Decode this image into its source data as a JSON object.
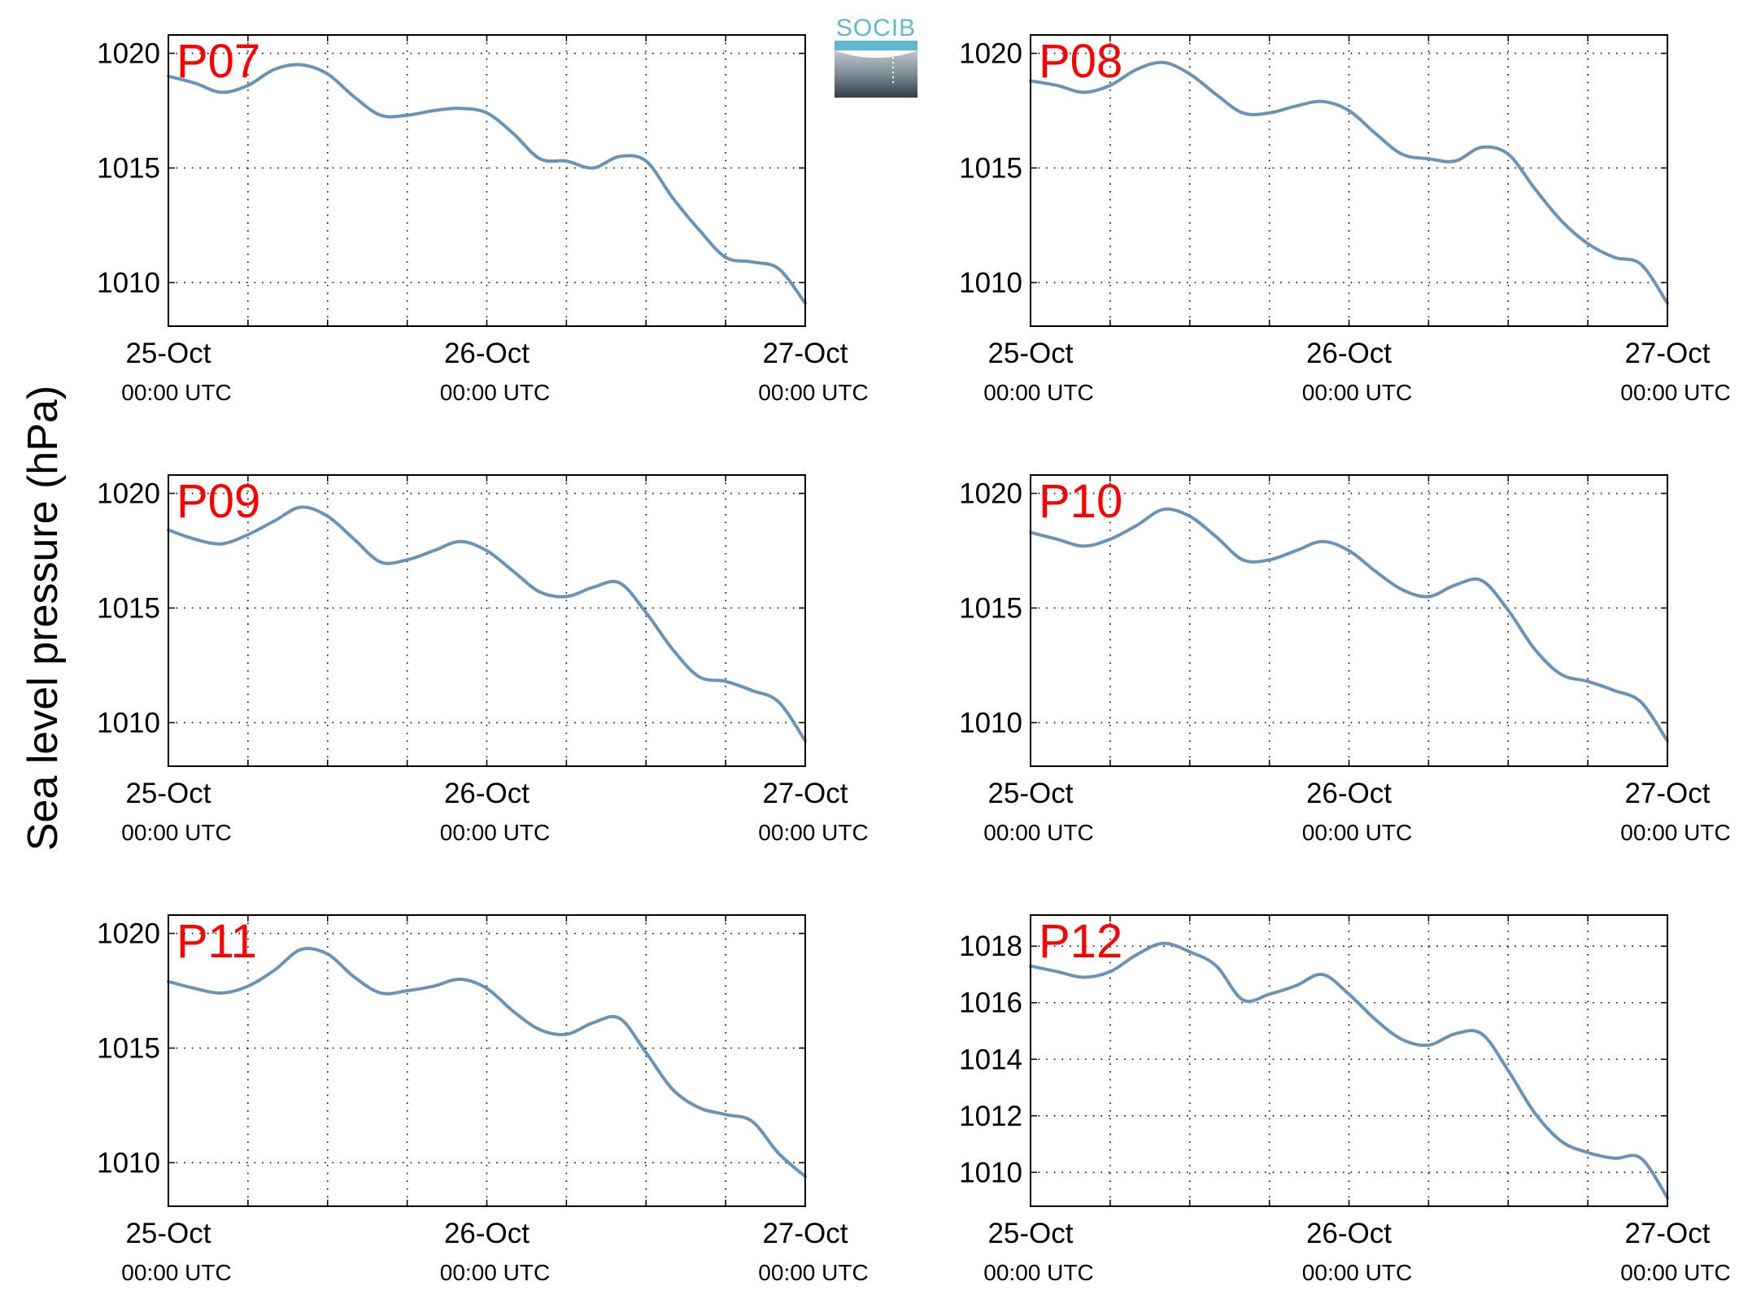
{
  "figure": {
    "ylabel": "Sea level pressure (hPa)",
    "logo_text": "SOCIB",
    "colors": {
      "line": "#6b93b5",
      "panel_label": "#ff0000",
      "grid": "#000000",
      "logo_text": "#5fb8cf"
    },
    "x_tick_labels": [
      {
        "date": "25-Oct",
        "time": "00:00 UTC"
      },
      {
        "date": "26-Oct",
        "time": "00:00 UTC"
      },
      {
        "date": "27-Oct",
        "time": "00:00 UTC"
      }
    ]
  },
  "chart_data": [
    {
      "type": "line",
      "title": "P07",
      "xlabel": "",
      "ylabel": "Sea level pressure (hPa)",
      "x": [
        "2023-10-25 00:00",
        "2023-10-25 02:00",
        "2023-10-25 04:00",
        "2023-10-25 06:00",
        "2023-10-25 08:00",
        "2023-10-25 10:00",
        "2023-10-25 12:00",
        "2023-10-25 14:00",
        "2023-10-25 16:00",
        "2023-10-25 18:00",
        "2023-10-25 20:00",
        "2023-10-25 22:00",
        "2023-10-26 00:00",
        "2023-10-26 02:00",
        "2023-10-26 04:00",
        "2023-10-26 06:00",
        "2023-10-26 08:00",
        "2023-10-26 10:00",
        "2023-10-26 12:00",
        "2023-10-26 14:00",
        "2023-10-26 16:00",
        "2023-10-26 18:00",
        "2023-10-26 20:00",
        "2023-10-26 22:00",
        "2023-10-27 00:00"
      ],
      "x_ticks": [
        "25-Oct",
        "26-Oct",
        "27-Oct"
      ],
      "y_ticks": [
        1010,
        1015,
        1020
      ],
      "ylim": [
        1008.1,
        1020.8
      ],
      "grid": true,
      "series": [
        {
          "values": [
            1019.0,
            1018.7,
            1018.3,
            1018.6,
            1019.3,
            1019.5,
            1019.1,
            1018.1,
            1017.3,
            1017.3,
            1017.5,
            1017.6,
            1017.4,
            1016.5,
            1015.4,
            1015.3,
            1015.0,
            1015.5,
            1015.3,
            1013.7,
            1012.3,
            1011.1,
            1010.9,
            1010.6,
            1009.1
          ]
        }
      ]
    },
    {
      "type": "line",
      "title": "P08",
      "xlabel": "",
      "ylabel": "Sea level pressure (hPa)",
      "x": [
        "2023-10-25 00:00",
        "2023-10-25 02:00",
        "2023-10-25 04:00",
        "2023-10-25 06:00",
        "2023-10-25 08:00",
        "2023-10-25 10:00",
        "2023-10-25 12:00",
        "2023-10-25 14:00",
        "2023-10-25 16:00",
        "2023-10-25 18:00",
        "2023-10-25 20:00",
        "2023-10-25 22:00",
        "2023-10-26 00:00",
        "2023-10-26 02:00",
        "2023-10-26 04:00",
        "2023-10-26 06:00",
        "2023-10-26 08:00",
        "2023-10-26 10:00",
        "2023-10-26 12:00",
        "2023-10-26 14:00",
        "2023-10-26 16:00",
        "2023-10-26 18:00",
        "2023-10-26 20:00",
        "2023-10-26 22:00",
        "2023-10-27 00:00"
      ],
      "x_ticks": [
        "25-Oct",
        "26-Oct",
        "27-Oct"
      ],
      "y_ticks": [
        1010,
        1015,
        1020
      ],
      "ylim": [
        1008.1,
        1020.8
      ],
      "grid": true,
      "series": [
        {
          "values": [
            1018.8,
            1018.6,
            1018.3,
            1018.6,
            1019.3,
            1019.6,
            1019.1,
            1018.2,
            1017.4,
            1017.4,
            1017.7,
            1017.9,
            1017.5,
            1016.5,
            1015.6,
            1015.4,
            1015.3,
            1015.9,
            1015.6,
            1014.1,
            1012.7,
            1011.7,
            1011.1,
            1010.8,
            1009.1
          ]
        }
      ]
    },
    {
      "type": "line",
      "title": "P09",
      "xlabel": "",
      "ylabel": "Sea level pressure (hPa)",
      "x": [
        "2023-10-25 00:00",
        "2023-10-25 02:00",
        "2023-10-25 04:00",
        "2023-10-25 06:00",
        "2023-10-25 08:00",
        "2023-10-25 10:00",
        "2023-10-25 12:00",
        "2023-10-25 14:00",
        "2023-10-25 16:00",
        "2023-10-25 18:00",
        "2023-10-25 20:00",
        "2023-10-25 22:00",
        "2023-10-26 00:00",
        "2023-10-26 02:00",
        "2023-10-26 04:00",
        "2023-10-26 06:00",
        "2023-10-26 08:00",
        "2023-10-26 10:00",
        "2023-10-26 12:00",
        "2023-10-26 14:00",
        "2023-10-26 16:00",
        "2023-10-26 18:00",
        "2023-10-26 20:00",
        "2023-10-26 22:00",
        "2023-10-27 00:00"
      ],
      "x_ticks": [
        "25-Oct",
        "26-Oct",
        "27-Oct"
      ],
      "y_ticks": [
        1010,
        1015,
        1020
      ],
      "ylim": [
        1008.1,
        1020.8
      ],
      "grid": true,
      "series": [
        {
          "values": [
            1018.4,
            1018.0,
            1017.8,
            1018.2,
            1018.8,
            1019.4,
            1019.0,
            1018.0,
            1017.0,
            1017.1,
            1017.5,
            1017.9,
            1017.5,
            1016.6,
            1015.7,
            1015.5,
            1015.9,
            1016.1,
            1014.8,
            1013.2,
            1012.0,
            1011.8,
            1011.4,
            1010.9,
            1009.2
          ]
        }
      ]
    },
    {
      "type": "line",
      "title": "P10",
      "xlabel": "",
      "ylabel": "Sea level pressure (hPa)",
      "x": [
        "2023-10-25 00:00",
        "2023-10-25 02:00",
        "2023-10-25 04:00",
        "2023-10-25 06:00",
        "2023-10-25 08:00",
        "2023-10-25 10:00",
        "2023-10-25 12:00",
        "2023-10-25 14:00",
        "2023-10-25 16:00",
        "2023-10-25 18:00",
        "2023-10-25 20:00",
        "2023-10-25 22:00",
        "2023-10-26 00:00",
        "2023-10-26 02:00",
        "2023-10-26 04:00",
        "2023-10-26 06:00",
        "2023-10-26 08:00",
        "2023-10-26 10:00",
        "2023-10-26 12:00",
        "2023-10-26 14:00",
        "2023-10-26 16:00",
        "2023-10-26 18:00",
        "2023-10-26 20:00",
        "2023-10-26 22:00",
        "2023-10-27 00:00"
      ],
      "x_ticks": [
        "25-Oct",
        "26-Oct",
        "27-Oct"
      ],
      "y_ticks": [
        1010,
        1015,
        1020
      ],
      "ylim": [
        1008.1,
        1020.8
      ],
      "grid": true,
      "series": [
        {
          "values": [
            1018.3,
            1018.0,
            1017.7,
            1018.0,
            1018.6,
            1019.3,
            1019.0,
            1018.1,
            1017.1,
            1017.1,
            1017.5,
            1017.9,
            1017.5,
            1016.6,
            1015.8,
            1015.5,
            1016.0,
            1016.2,
            1014.9,
            1013.2,
            1012.1,
            1011.8,
            1011.4,
            1010.9,
            1009.2
          ]
        }
      ]
    },
    {
      "type": "line",
      "title": "P11",
      "xlabel": "",
      "ylabel": "Sea level pressure (hPa)",
      "x": [
        "2023-10-25 00:00",
        "2023-10-25 02:00",
        "2023-10-25 04:00",
        "2023-10-25 06:00",
        "2023-10-25 08:00",
        "2023-10-25 10:00",
        "2023-10-25 12:00",
        "2023-10-25 14:00",
        "2023-10-25 16:00",
        "2023-10-25 18:00",
        "2023-10-25 20:00",
        "2023-10-25 22:00",
        "2023-10-26 00:00",
        "2023-10-26 02:00",
        "2023-10-26 04:00",
        "2023-10-26 06:00",
        "2023-10-26 08:00",
        "2023-10-26 10:00",
        "2023-10-26 12:00",
        "2023-10-26 14:00",
        "2023-10-26 16:00",
        "2023-10-26 18:00",
        "2023-10-26 20:00",
        "2023-10-26 22:00",
        "2023-10-27 00:00"
      ],
      "x_ticks": [
        "25-Oct",
        "26-Oct",
        "27-Oct"
      ],
      "y_ticks": [
        1010,
        1015,
        1020
      ],
      "ylim": [
        1008.1,
        1020.8
      ],
      "grid": true,
      "series": [
        {
          "values": [
            1017.9,
            1017.6,
            1017.4,
            1017.7,
            1018.4,
            1019.3,
            1019.1,
            1018.1,
            1017.4,
            1017.5,
            1017.7,
            1018.0,
            1017.6,
            1016.6,
            1015.8,
            1015.6,
            1016.1,
            1016.3,
            1014.8,
            1013.2,
            1012.4,
            1012.1,
            1011.8,
            1010.4,
            1009.4
          ]
        }
      ]
    },
    {
      "type": "line",
      "title": "P12",
      "xlabel": "",
      "ylabel": "Sea level pressure (hPa)",
      "x": [
        "2023-10-25 00:00",
        "2023-10-25 02:00",
        "2023-10-25 04:00",
        "2023-10-25 06:00",
        "2023-10-25 08:00",
        "2023-10-25 10:00",
        "2023-10-25 12:00",
        "2023-10-25 14:00",
        "2023-10-25 16:00",
        "2023-10-25 18:00",
        "2023-10-25 20:00",
        "2023-10-25 22:00",
        "2023-10-26 00:00",
        "2023-10-26 02:00",
        "2023-10-26 04:00",
        "2023-10-26 06:00",
        "2023-10-26 08:00",
        "2023-10-26 10:00",
        "2023-10-26 12:00",
        "2023-10-26 14:00",
        "2023-10-26 16:00",
        "2023-10-26 18:00",
        "2023-10-26 20:00",
        "2023-10-26 22:00",
        "2023-10-27 00:00"
      ],
      "x_ticks": [
        "25-Oct",
        "26-Oct",
        "27-Oct"
      ],
      "y_ticks": [
        1010,
        1012,
        1014,
        1016,
        1018
      ],
      "ylim": [
        1008.8,
        1019.1
      ],
      "grid": true,
      "series": [
        {
          "values": [
            1017.3,
            1017.1,
            1016.9,
            1017.1,
            1017.7,
            1018.1,
            1017.8,
            1017.3,
            1016.1,
            1016.3,
            1016.6,
            1017.0,
            1016.3,
            1015.4,
            1014.7,
            1014.5,
            1014.9,
            1014.9,
            1013.6,
            1012.1,
            1011.1,
            1010.7,
            1010.5,
            1010.5,
            1009.1
          ]
        }
      ]
    }
  ]
}
